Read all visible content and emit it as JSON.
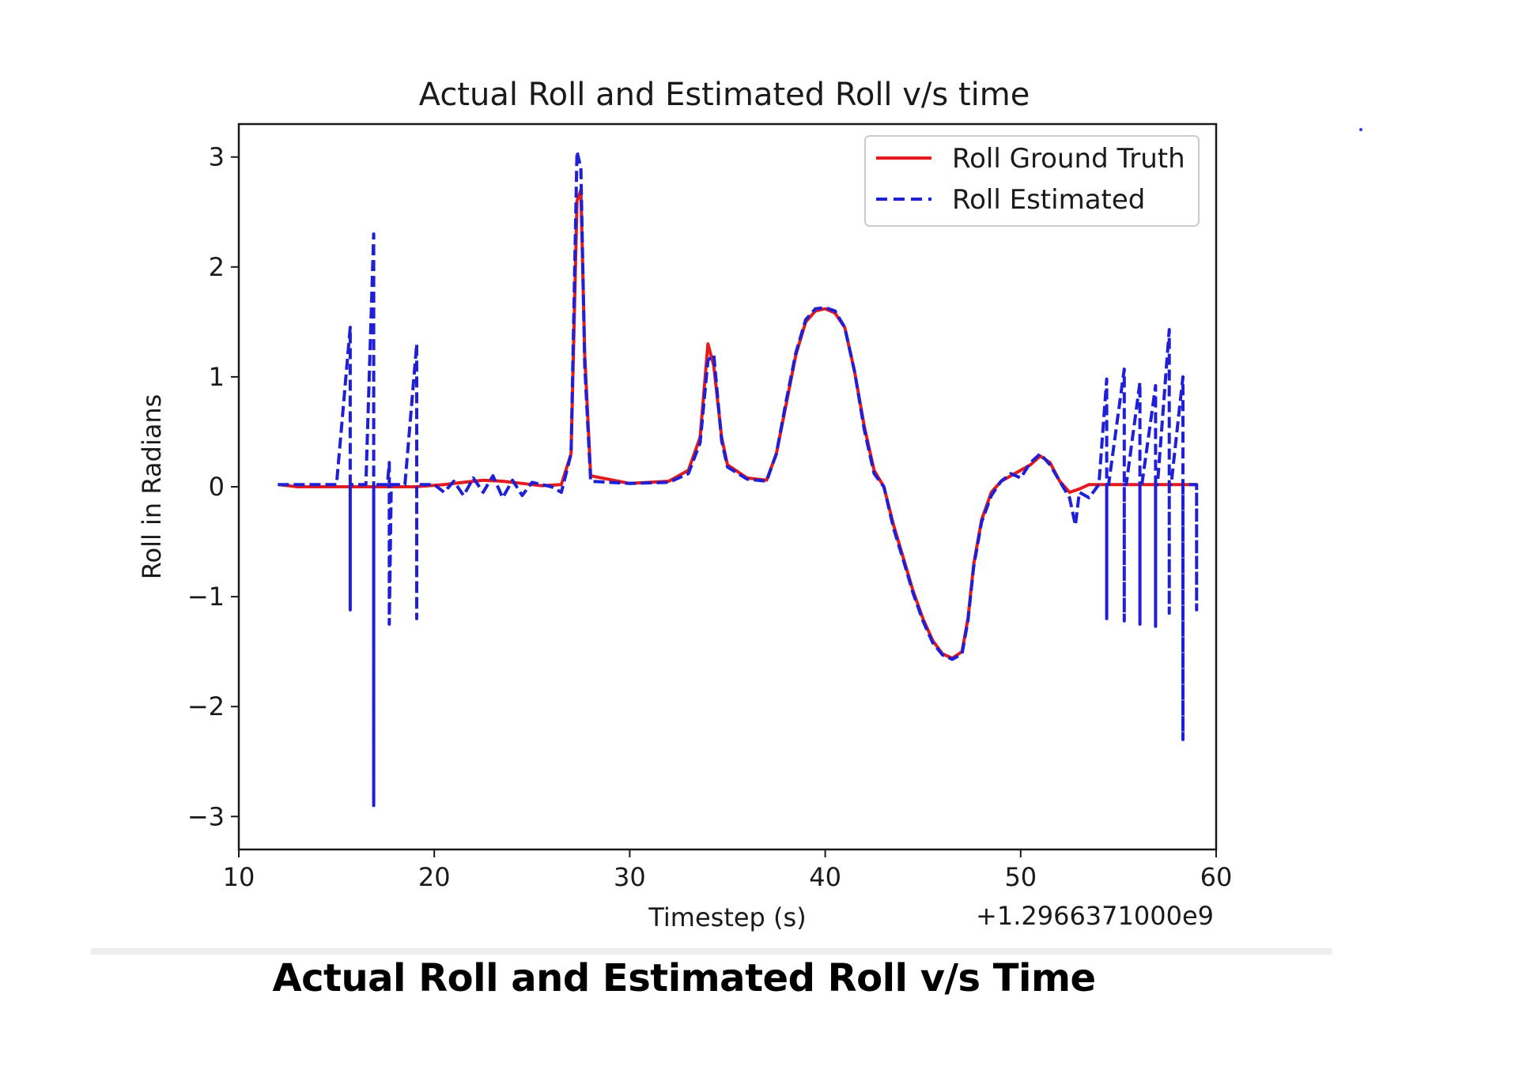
{
  "chart_data": {
    "type": "line",
    "title": "Actual Roll and Estimated Roll v/s time",
    "xlabel": "Timestep (s)",
    "ylabel": "Roll in Radians",
    "x_offset_label": "+1.2966371000e9",
    "xlim": [
      10,
      60
    ],
    "ylim": [
      -3.3,
      3.3
    ],
    "xticks": [
      10,
      20,
      30,
      40,
      50,
      60
    ],
    "yticks": [
      -3,
      -2,
      -1,
      0,
      1,
      2,
      3
    ],
    "ytick_labels": [
      "−3",
      "−2",
      "−1",
      "0",
      "1",
      "2",
      "3"
    ],
    "grid": false,
    "legend_position": "top-right",
    "series": [
      {
        "name": "Roll Ground Truth",
        "color": "#e41a1c",
        "style": "solid",
        "x": [
          12.0,
          13.0,
          15.0,
          17.0,
          19.0,
          20.5,
          21.5,
          22.5,
          23.5,
          24.5,
          25.5,
          26.5,
          27.0,
          27.3,
          27.5,
          27.7,
          28.0,
          30.0,
          32.0,
          33.0,
          33.6,
          34.0,
          34.3,
          34.7,
          35.0,
          36.0,
          37.0,
          37.5,
          38.0,
          38.5,
          39.0,
          39.5,
          40.0,
          40.5,
          41.0,
          41.5,
          42.0,
          42.5,
          43.0,
          43.5,
          44.0,
          44.5,
          45.0,
          45.5,
          46.0,
          46.5,
          47.0,
          47.3,
          47.6,
          48.0,
          48.5,
          49.0,
          49.5,
          50.0,
          50.5,
          51.0,
          51.5,
          52.0,
          52.5,
          53.0,
          53.5,
          54.0,
          55.0,
          56.0,
          57.0,
          58.0,
          59.0
        ],
        "y": [
          0.02,
          0.0,
          0.0,
          0.0,
          0.0,
          0.02,
          0.04,
          0.06,
          0.05,
          0.03,
          0.01,
          0.02,
          0.3,
          2.6,
          2.7,
          1.2,
          0.1,
          0.03,
          0.05,
          0.15,
          0.45,
          1.3,
          1.1,
          0.45,
          0.2,
          0.08,
          0.06,
          0.3,
          0.75,
          1.2,
          1.5,
          1.6,
          1.62,
          1.58,
          1.45,
          1.05,
          0.55,
          0.15,
          0.0,
          -0.35,
          -0.65,
          -0.95,
          -1.2,
          -1.4,
          -1.52,
          -1.56,
          -1.5,
          -1.2,
          -0.7,
          -0.3,
          -0.05,
          0.05,
          0.1,
          0.15,
          0.2,
          0.28,
          0.22,
          0.05,
          -0.05,
          -0.02,
          0.02,
          0.02,
          0.02,
          0.02,
          0.02,
          0.02,
          0.02
        ]
      },
      {
        "name": "Roll Estimated",
        "color": "#1f1fd6",
        "style": "dashed",
        "x": [
          12.0,
          13.0,
          15.0,
          15.7,
          15.7,
          15.7,
          15.8,
          16.5,
          16.9,
          16.9,
          16.9,
          17.0,
          17.6,
          17.7,
          17.7,
          17.8,
          18.5,
          19.1,
          19.1,
          19.1,
          19.2,
          20.0,
          20.5,
          21.0,
          21.5,
          22.0,
          22.5,
          23.0,
          23.5,
          24.0,
          24.5,
          25.0,
          25.5,
          26.0,
          26.5,
          27.0,
          27.3,
          27.5,
          27.7,
          28.0,
          30.0,
          32.0,
          33.0,
          33.6,
          34.0,
          34.3,
          34.7,
          35.0,
          36.0,
          37.0,
          37.5,
          38.0,
          38.5,
          39.0,
          39.5,
          40.0,
          40.5,
          41.0,
          41.5,
          42.0,
          42.5,
          43.0,
          43.5,
          44.0,
          44.5,
          45.0,
          45.5,
          46.0,
          46.5,
          47.0,
          47.3,
          47.6,
          48.0,
          48.5,
          49.0,
          49.5,
          50.0,
          50.5,
          51.0,
          51.5,
          52.0,
          52.5,
          52.8,
          53.0,
          53.5,
          54.0,
          54.4,
          54.4,
          54.4,
          54.5,
          55.3,
          55.3,
          55.3,
          55.4,
          56.1,
          56.1,
          56.1,
          56.2,
          56.9,
          56.9,
          56.9,
          57.0,
          57.6,
          57.6,
          57.6,
          57.7,
          58.3,
          58.3,
          58.3,
          58.4,
          59.0,
          59.0,
          59.0
        ],
        "y": [
          0.02,
          0.02,
          0.02,
          1.45,
          -1.12,
          0.02,
          0.02,
          0.02,
          2.3,
          -2.9,
          0.02,
          0.02,
          0.02,
          0.22,
          -1.25,
          0.02,
          0.02,
          1.3,
          -1.2,
          0.02,
          0.02,
          0.02,
          -0.05,
          0.05,
          -0.08,
          0.08,
          -0.05,
          0.1,
          -0.1,
          0.06,
          -0.08,
          0.04,
          0.02,
          0.0,
          -0.05,
          0.3,
          3.05,
          2.9,
          1.1,
          0.05,
          0.03,
          0.04,
          0.12,
          0.4,
          1.15,
          1.2,
          0.42,
          0.18,
          0.07,
          0.05,
          0.3,
          0.78,
          1.22,
          1.52,
          1.62,
          1.63,
          1.6,
          1.45,
          1.05,
          0.52,
          0.12,
          0.0,
          -0.38,
          -0.67,
          -0.97,
          -1.22,
          -1.42,
          -1.53,
          -1.57,
          -1.52,
          -1.22,
          -0.72,
          -0.32,
          -0.08,
          0.05,
          0.12,
          0.08,
          0.22,
          0.3,
          0.2,
          0.05,
          -0.1,
          -0.35,
          -0.05,
          -0.1,
          0.02,
          0.98,
          -1.2,
          0.02,
          0.02,
          1.07,
          -1.22,
          0.02,
          0.02,
          0.95,
          -1.25,
          0.02,
          0.02,
          0.92,
          -1.27,
          0.02,
          0.02,
          1.43,
          -1.15,
          0.02,
          0.02,
          1.0,
          -2.3,
          0.02,
          0.02,
          0.02,
          -1.12,
          0.02
        ]
      }
    ]
  },
  "caption": "Actual Roll and Estimated Roll v/s Time"
}
